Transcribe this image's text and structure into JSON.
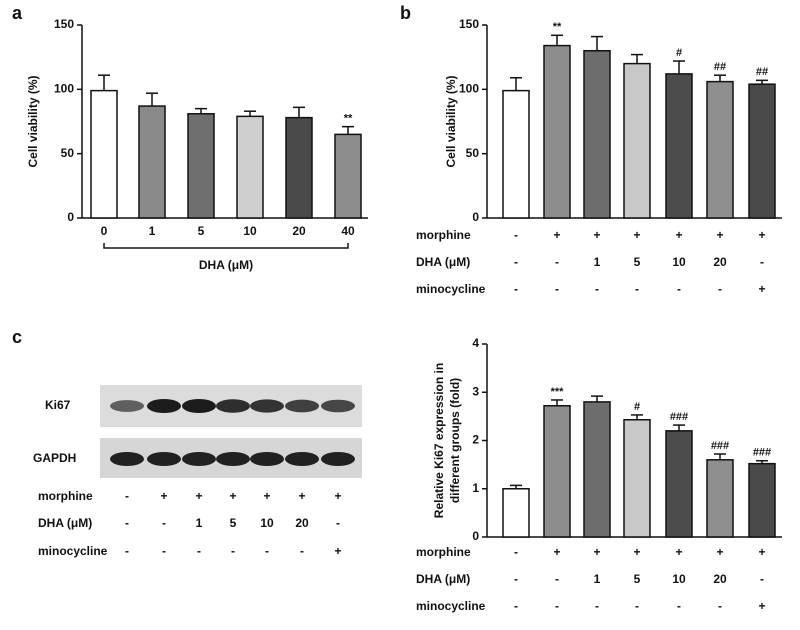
{
  "chart_data": [
    {
      "type": "bar",
      "panel": "a",
      "y_label": "Cell viability (%)",
      "x_label": "DHA (μM)",
      "categories": [
        "0",
        "1",
        "5",
        "10",
        "20",
        "40"
      ],
      "values": [
        99,
        87,
        81,
        79,
        78,
        65
      ],
      "errors": [
        12,
        10,
        4,
        4,
        8,
        6
      ],
      "annotations": [
        null,
        null,
        null,
        null,
        null,
        "**"
      ],
      "colors": [
        "#ffffff",
        "#8a8a8a",
        "#6f6f6f",
        "#cfcfcf",
        "#4a4a4a",
        "#8c8c8c"
      ],
      "ylim": [
        0,
        150
      ],
      "yticks": [
        0,
        50,
        100,
        150
      ]
    },
    {
      "type": "bar",
      "panel": "b",
      "y_label": "Cell viability (%)",
      "values": [
        99,
        134,
        130,
        120,
        112,
        106,
        104
      ],
      "errors": [
        10,
        8,
        11,
        7,
        10,
        5,
        3
      ],
      "annotations": [
        null,
        "**",
        null,
        null,
        "#",
        "##",
        "##"
      ],
      "colors": [
        "#ffffff",
        "#8d8d8d",
        "#6d6d6d",
        "#c8c8c8",
        "#4c4c4c",
        "#8f8f8f",
        "#4a4a4a"
      ],
      "ylim": [
        0,
        150
      ],
      "yticks": [
        0,
        50,
        100,
        150
      ],
      "conditions": [
        {
          "name": "morphine",
          "values": [
            "-",
            "+",
            "+",
            "+",
            "+",
            "+",
            "+"
          ]
        },
        {
          "name": "DHA (μM)",
          "values": [
            "-",
            "-",
            "1",
            "5",
            "10",
            "20",
            "-"
          ]
        },
        {
          "name": "minocycline",
          "values": [
            "-",
            "-",
            "-",
            "-",
            "-",
            "-",
            "+"
          ]
        }
      ]
    },
    {
      "type": "bar",
      "panel": "c",
      "y_label": [
        "Relative Ki67 expression in",
        "different groups (fold)"
      ],
      "values": [
        1.0,
        2.72,
        2.8,
        2.43,
        2.2,
        1.6,
        1.52
      ],
      "errors": [
        0.07,
        0.12,
        0.12,
        0.1,
        0.12,
        0.12,
        0.06
      ],
      "annotations": [
        null,
        "***",
        null,
        "#",
        "###",
        "###",
        "###"
      ],
      "colors": [
        "#ffffff",
        "#8d8d8d",
        "#6d6d6d",
        "#c8c8c8",
        "#4c4c4c",
        "#8f8f8f",
        "#4a4a4a"
      ],
      "ylim": [
        0,
        4
      ],
      "yticks": [
        0,
        1,
        2,
        3,
        4
      ],
      "conditions": [
        {
          "name": "morphine",
          "values": [
            "-",
            "+",
            "+",
            "+",
            "+",
            "+",
            "+"
          ]
        },
        {
          "name": "DHA (μM)",
          "values": [
            "-",
            "-",
            "1",
            "5",
            "10",
            "20",
            "-"
          ]
        },
        {
          "name": "minocycline",
          "values": [
            "-",
            "-",
            "-",
            "-",
            "-",
            "-",
            "+"
          ]
        }
      ]
    }
  ],
  "blot": {
    "bands": [
      "Ki67",
      "GAPDH"
    ],
    "conditions": [
      {
        "name": "morphine",
        "values": [
          "-",
          "+",
          "+",
          "+",
          "+",
          "+",
          "+"
        ]
      },
      {
        "name": "DHA (μM)",
        "values": [
          "-",
          "-",
          "1",
          "5",
          "10",
          "20",
          "-"
        ]
      },
      {
        "name": "minocycline",
        "values": [
          "-",
          "-",
          "-",
          "-",
          "-",
          "-",
          "+"
        ]
      }
    ]
  }
}
